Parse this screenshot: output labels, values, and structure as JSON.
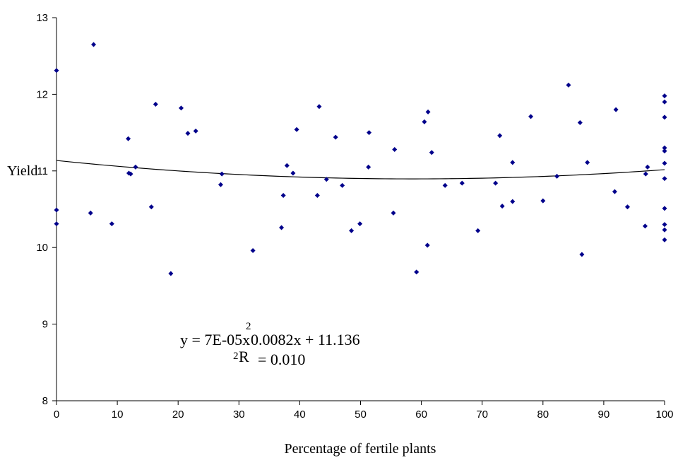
{
  "chart_data": {
    "type": "scatter",
    "xlabel": "Percentage of fertile plants",
    "ylabel": "Yield",
    "xlim": [
      0,
      100
    ],
    "ylim": [
      8,
      13
    ],
    "xticks": [
      "0",
      "10",
      "20",
      "30",
      "40",
      "50",
      "60",
      "70",
      "80",
      "90",
      "100"
    ],
    "yticks": [
      "8",
      "9",
      "10",
      "11",
      "12",
      "13"
    ],
    "marker_color": "#00008B",
    "trendline": {
      "type": "polynomial",
      "coefficients": {
        "a": 7e-05,
        "b": -0.0082,
        "c": 11.136
      },
      "equation_line1": "y = 7E-05x",
      "equation_sup1": "2",
      "equation_line1b": "0.0082x + 11.136",
      "equation_line2_sup": "2",
      "equation_line2_r": "R",
      "equation_line2": "= 0.010"
    },
    "points": [
      {
        "x": 0,
        "y": 12.31
      },
      {
        "x": 0,
        "y": 10.49
      },
      {
        "x": 0,
        "y": 10.31
      },
      {
        "x": 5.6,
        "y": 10.45
      },
      {
        "x": 6.1,
        "y": 12.65
      },
      {
        "x": 9.1,
        "y": 10.31
      },
      {
        "x": 11.8,
        "y": 11.42
      },
      {
        "x": 11.9,
        "y": 10.97
      },
      {
        "x": 12.2,
        "y": 10.96
      },
      {
        "x": 13.0,
        "y": 11.05
      },
      {
        "x": 15.6,
        "y": 10.53
      },
      {
        "x": 16.3,
        "y": 11.87
      },
      {
        "x": 18.8,
        "y": 9.66
      },
      {
        "x": 20.5,
        "y": 11.82
      },
      {
        "x": 21.6,
        "y": 11.49
      },
      {
        "x": 22.9,
        "y": 11.52
      },
      {
        "x": 27.0,
        "y": 10.82
      },
      {
        "x": 27.2,
        "y": 10.96
      },
      {
        "x": 32.3,
        "y": 9.96
      },
      {
        "x": 37.0,
        "y": 10.26
      },
      {
        "x": 37.3,
        "y": 10.68
      },
      {
        "x": 37.9,
        "y": 11.07
      },
      {
        "x": 38.9,
        "y": 10.97
      },
      {
        "x": 39.5,
        "y": 11.54
      },
      {
        "x": 42.9,
        "y": 10.68
      },
      {
        "x": 43.2,
        "y": 11.84
      },
      {
        "x": 44.4,
        "y": 10.89
      },
      {
        "x": 45.9,
        "y": 11.44
      },
      {
        "x": 47.0,
        "y": 10.81
      },
      {
        "x": 48.5,
        "y": 10.22
      },
      {
        "x": 49.9,
        "y": 10.31
      },
      {
        "x": 51.3,
        "y": 11.05
      },
      {
        "x": 51.4,
        "y": 11.5
      },
      {
        "x": 55.4,
        "y": 10.45
      },
      {
        "x": 55.6,
        "y": 11.28
      },
      {
        "x": 59.2,
        "y": 9.68
      },
      {
        "x": 60.5,
        "y": 11.64
      },
      {
        "x": 61.0,
        "y": 10.03
      },
      {
        "x": 61.1,
        "y": 11.77
      },
      {
        "x": 61.7,
        "y": 11.24
      },
      {
        "x": 63.9,
        "y": 10.81
      },
      {
        "x": 66.7,
        "y": 10.84
      },
      {
        "x": 69.3,
        "y": 10.22
      },
      {
        "x": 72.2,
        "y": 10.84
      },
      {
        "x": 72.9,
        "y": 11.46
      },
      {
        "x": 73.3,
        "y": 10.54
      },
      {
        "x": 75.0,
        "y": 10.6
      },
      {
        "x": 75.0,
        "y": 11.11
      },
      {
        "x": 78.0,
        "y": 11.71
      },
      {
        "x": 80.0,
        "y": 10.61
      },
      {
        "x": 82.3,
        "y": 10.93
      },
      {
        "x": 84.2,
        "y": 12.12
      },
      {
        "x": 86.1,
        "y": 11.63
      },
      {
        "x": 86.4,
        "y": 9.91
      },
      {
        "x": 87.3,
        "y": 11.11
      },
      {
        "x": 91.8,
        "y": 10.73
      },
      {
        "x": 92.0,
        "y": 11.8
      },
      {
        "x": 93.9,
        "y": 10.53
      },
      {
        "x": 96.8,
        "y": 10.28
      },
      {
        "x": 96.9,
        "y": 10.96
      },
      {
        "x": 97.2,
        "y": 11.05
      },
      {
        "x": 100,
        "y": 11.98
      },
      {
        "x": 100,
        "y": 11.9
      },
      {
        "x": 100,
        "y": 11.7
      },
      {
        "x": 100,
        "y": 11.3
      },
      {
        "x": 100,
        "y": 11.26
      },
      {
        "x": 100,
        "y": 11.1
      },
      {
        "x": 100,
        "y": 10.9
      },
      {
        "x": 100,
        "y": 10.51
      },
      {
        "x": 100,
        "y": 10.3
      },
      {
        "x": 100,
        "y": 10.23
      },
      {
        "x": 100,
        "y": 10.1
      }
    ]
  }
}
